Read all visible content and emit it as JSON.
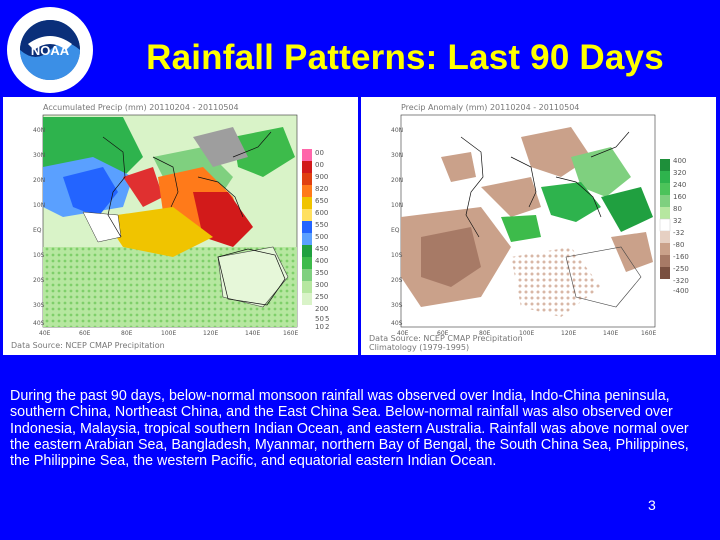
{
  "title": "Rainfall Patterns: Last 90 Days",
  "logo": {
    "icon": "noaa-seal-icon",
    "text": "NOAA",
    "ring_text": "NATIONAL OCEANIC AND ATMOSPHERIC ADMINISTRATION · U.S. DEPARTMENT OF COMMERCE"
  },
  "maps": {
    "left": {
      "header": "Accumulated Precip (mm) 20110204 - 20110504",
      "footer": "Data Source: NCEP CMAP Precipitation",
      "legend": [
        "00",
        "00",
        "900",
        "820",
        "650",
        "600",
        "550",
        "500",
        "450",
        "400",
        "350",
        "300",
        "250",
        "200",
        "50",
        "10",
        "5",
        "2"
      ]
    },
    "right": {
      "header": "Precip Anomaly (mm) 20110204 - 20110504",
      "footer_line1": "Data Source: NCEP CMAP Precipitation",
      "footer_line2": "Climatology (1979-1995)",
      "legend": [
        "400",
        "320",
        "240",
        "160",
        "80",
        "32",
        "-32",
        "-80",
        "-160",
        "-250",
        "-320",
        "-400"
      ]
    },
    "lat_ticks": [
      "40N",
      "30N",
      "20N",
      "10N",
      "EQ",
      "10S",
      "20S",
      "30S",
      "40S"
    ],
    "lon_ticks": [
      "40E",
      "60E",
      "80E",
      "100E",
      "120E",
      "140E",
      "160E"
    ]
  },
  "caption": "During the past 90 days, below-normal monsoon rainfall was observed over India, Indo-China peninsula, southern China, Northeast China, and the East China Sea. Below-normal rainfall was also observed over Indonesia, Malaysia, tropical southern Indian Ocean, and eastern Australia. Rainfall was above normal over the eastern Arabian Sea, Bangladesh, Myanmar, northern Bay of Bengal, the South China Sea, Philippines, the Philippine Sea, the western Pacific, and equatorial eastern Indian Ocean.",
  "page_number": "3",
  "colors": {
    "background": "#0000ff",
    "title": "#ffff00",
    "caption": "#ffffff"
  }
}
